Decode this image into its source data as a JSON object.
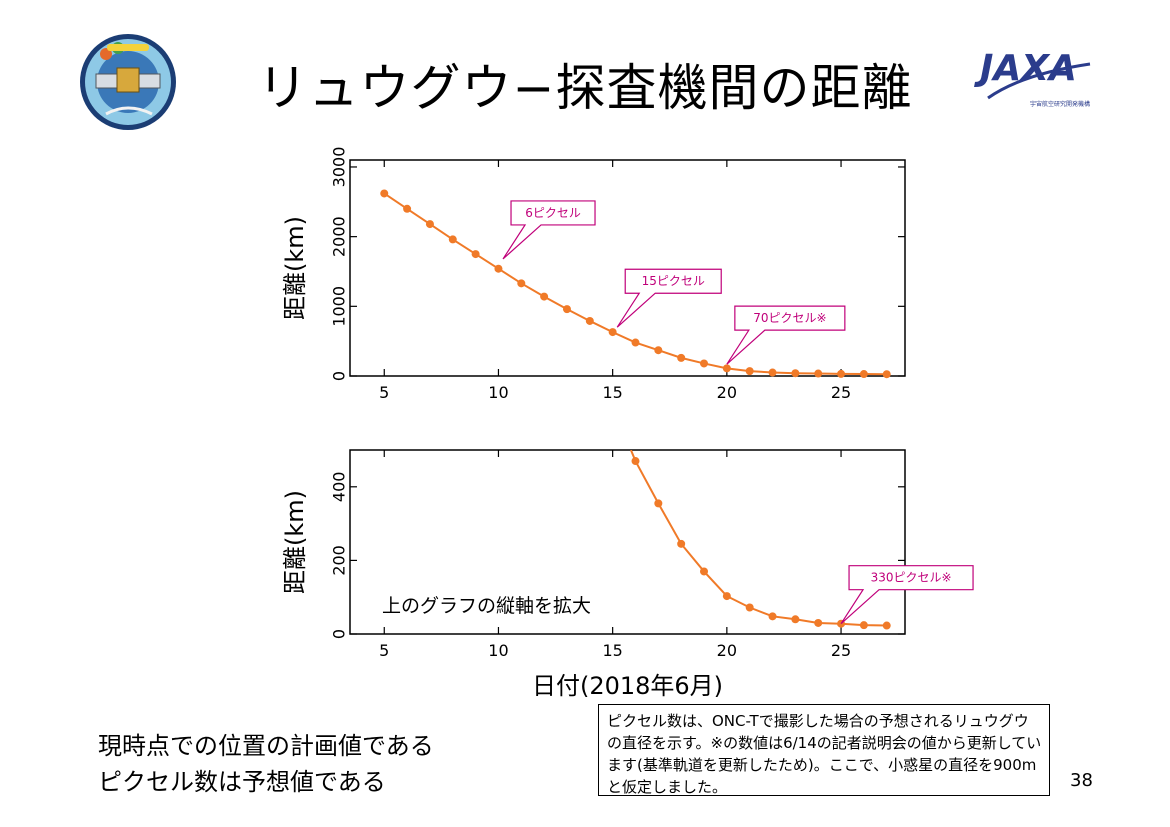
{
  "slide": {
    "title": "リュウグウ−探査機間の距離",
    "page_number": "38",
    "notes": [
      "現時点での位置の計画値である",
      "ピクセル数は予想値である"
    ],
    "caption": "ピクセル数は、ONC-Tで撮影した場合の予想されるリュウグウの直径を示す。※の数値は6/14の記者説明会の値から更新しています(基準軌道を更新したため)。ここで、小惑星の直径を900mと仮定しました。",
    "logos": {
      "left": "hayabusa2-mission-logo",
      "right": "JAXA",
      "jaxa_sub": "宇宙航空研究開発機構"
    }
  },
  "colors": {
    "series": "#f07a28",
    "callout": "#c0007a",
    "frame": "#000000"
  },
  "chart_data": [
    {
      "type": "line",
      "ylabel": "距離(km)",
      "xlabel": "",
      "xlim": [
        3.5,
        27.8
      ],
      "ylim": [
        0,
        3100
      ],
      "xticks": [
        5,
        10,
        15,
        20,
        25
      ],
      "yticks": [
        0,
        1000,
        2000,
        3000
      ],
      "x": [
        5,
        6,
        7,
        8,
        9,
        10,
        11,
        12,
        13,
        14,
        15,
        16,
        17,
        18,
        19,
        20,
        21,
        22,
        23,
        24,
        25,
        26,
        27
      ],
      "values": [
        2620,
        2400,
        2180,
        1960,
        1750,
        1540,
        1330,
        1140,
        960,
        790,
        630,
        480,
        370,
        260,
        180,
        110,
        70,
        50,
        40,
        35,
        30,
        28,
        26
      ],
      "annotations": [
        {
          "text": "6ピクセル",
          "x": 10.2,
          "y": 1680
        },
        {
          "text": "15ピクセル",
          "x": 15.2,
          "y": 700
        },
        {
          "text": "70ピクセル※",
          "x": 20.0,
          "y": 170
        }
      ]
    },
    {
      "type": "line",
      "ylabel": "距離(km)",
      "xlabel": "日付(2018年6月)",
      "xlim": [
        3.5,
        27.8
      ],
      "ylim": [
        0,
        500
      ],
      "xticks": [
        5,
        10,
        15,
        20,
        25
      ],
      "yticks": [
        0,
        200,
        400
      ],
      "x": [
        15.8,
        16,
        17,
        18,
        19,
        20,
        21,
        22,
        23,
        24,
        25,
        26,
        27
      ],
      "values": [
        500,
        470,
        355,
        245,
        170,
        103,
        72,
        48,
        40,
        30,
        28,
        24,
        23
      ],
      "inner_text": "上のグラフの縦軸を拡大",
      "annotations": [
        {
          "text": "330ピクセル※",
          "x": 25.0,
          "y": 28
        }
      ]
    }
  ]
}
